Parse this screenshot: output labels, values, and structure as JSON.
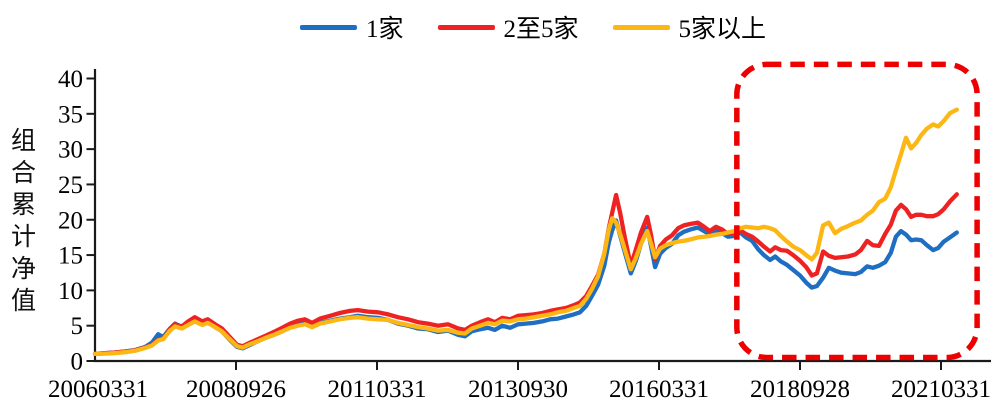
{
  "chart_data": {
    "type": "line",
    "title": "",
    "xlabel": "",
    "ylabel": "组合累计净值",
    "ylim": [
      0,
      40
    ],
    "yticks": [
      0,
      5,
      10,
      15,
      20,
      25,
      30,
      35,
      40
    ],
    "grid": false,
    "legend_position": "top-center",
    "x_unit": "years_since_20060331",
    "xticks": [
      {
        "t": 0.0,
        "label": "20060331"
      },
      {
        "t": 2.5,
        "label": "20080926"
      },
      {
        "t": 5.0,
        "label": "20110331"
      },
      {
        "t": 7.5,
        "label": "20130930"
      },
      {
        "t": 10.0,
        "label": "20160331"
      },
      {
        "t": 12.5,
        "label": "20180928"
      },
      {
        "t": 15.0,
        "label": "20210331"
      }
    ],
    "x": [
      0,
      0.18,
      0.35,
      0.53,
      0.71,
      0.89,
      1.01,
      1.12,
      1.21,
      1.33,
      1.42,
      1.54,
      1.65,
      1.77,
      1.9,
      2,
      2.13,
      2.25,
      2.39,
      2.52,
      2.62,
      2.75,
      2.89,
      3.03,
      3.17,
      3.32,
      3.46,
      3.6,
      3.72,
      3.85,
      3.99,
      4.17,
      4.34,
      4.52,
      4.66,
      4.84,
      5.02,
      5.2,
      5.37,
      5.55,
      5.73,
      5.9,
      6.08,
      6.26,
      6.44,
      6.56,
      6.68,
      6.83,
      6.97,
      7.09,
      7.22,
      7.36,
      7.5,
      7.64,
      7.78,
      7.93,
      8.07,
      8.21,
      8.35,
      8.49,
      8.6,
      8.71,
      8.81,
      8.92,
      9.03,
      9.11,
      9.17,
      9.24,
      9.31,
      9.4,
      9.5,
      9.59,
      9.68,
      9.79,
      9.86,
      9.93,
      10.02,
      10.12,
      10.23,
      10.34,
      10.44,
      10.55,
      10.69,
      10.8,
      10.9,
      11.01,
      11.12,
      11.22,
      11.33,
      11.44,
      11.54,
      11.65,
      11.76,
      11.86,
      11.97,
      12.06,
      12.16,
      12.27,
      12.38,
      12.5,
      12.61,
      12.71,
      12.8,
      12.91,
      13.01,
      13.12,
      13.23,
      13.35,
      13.48,
      13.58,
      13.69,
      13.79,
      13.9,
      14.01,
      14.11,
      14.2,
      14.29,
      14.38,
      14.47,
      14.56,
      14.65,
      14.75,
      14.86,
      14.95,
      15.05,
      15.16,
      15.28
    ],
    "series": [
      {
        "name": "1家",
        "color": "#1e6fc2",
        "values": [
          1,
          1.1,
          1.2,
          1.35,
          1.55,
          2,
          2.6,
          3.8,
          3.4,
          4.6,
          5.3,
          4.8,
          5.4,
          5.8,
          5.2,
          5.6,
          4.8,
          4.2,
          3,
          2,
          1.8,
          2.3,
          2.8,
          3.3,
          3.7,
          4.2,
          4.8,
          5.2,
          5.4,
          5,
          5.4,
          5.7,
          6,
          6.2,
          6.4,
          6.2,
          6.1,
          5.8,
          5.3,
          5,
          4.6,
          4.5,
          4.1,
          4.3,
          3.7,
          3.5,
          4.2,
          4.5,
          4.7,
          4.4,
          5,
          4.7,
          5.2,
          5.3,
          5.4,
          5.6,
          5.9,
          6,
          6.3,
          6.6,
          6.9,
          7.8,
          9.2,
          10.8,
          13.5,
          16.8,
          18.5,
          19.9,
          17.8,
          15.2,
          12.4,
          14.2,
          16.6,
          18.9,
          16.2,
          13.3,
          15.2,
          16,
          16.6,
          17.8,
          18.3,
          18.6,
          18.9,
          18.4,
          17.9,
          18.5,
          18.1,
          17.6,
          17.7,
          18.2,
          17.5,
          17,
          15.8,
          15,
          14.3,
          14.8,
          14.1,
          13.6,
          12.9,
          12.1,
          11.1,
          10.4,
          10.6,
          11.8,
          13.2,
          12.8,
          12.5,
          12.4,
          12.3,
          12.6,
          13.4,
          13.2,
          13.5,
          14,
          15.3,
          17.6,
          18.4,
          17.9,
          17.1,
          17.2,
          17.1,
          16.4,
          15.7,
          16,
          16.9,
          17.5,
          18.2
        ]
      },
      {
        "name": "2至5家",
        "color": "#ee2222",
        "values": [
          1,
          1.1,
          1.2,
          1.35,
          1.5,
          1.9,
          2.3,
          3,
          3.2,
          4.5,
          5.2,
          4.9,
          5.6,
          6.2,
          5.6,
          5.9,
          5.2,
          4.6,
          3.4,
          2.3,
          2.1,
          2.6,
          3.1,
          3.6,
          4.1,
          4.7,
          5.3,
          5.7,
          5.9,
          5.4,
          6,
          6.4,
          6.8,
          7.1,
          7.2,
          7,
          6.9,
          6.6,
          6.2,
          5.9,
          5.5,
          5.3,
          5,
          5.2,
          4.6,
          4.4,
          5,
          5.5,
          5.9,
          5.5,
          6.1,
          5.9,
          6.4,
          6.5,
          6.6,
          6.8,
          7.1,
          7.3,
          7.5,
          7.9,
          8.3,
          9.2,
          10.6,
          12.2,
          15.2,
          18.8,
          21,
          23.5,
          21,
          17.2,
          13.5,
          15.8,
          18.2,
          20.4,
          17.8,
          14.4,
          16.3,
          17.2,
          17.8,
          18.8,
          19.2,
          19.4,
          19.6,
          19,
          18.4,
          19,
          18.6,
          18,
          18.1,
          18.5,
          18,
          17.6,
          16.9,
          16.2,
          15.5,
          16.1,
          15.7,
          15.6,
          15,
          14.2,
          13.3,
          12.1,
          12.4,
          15.5,
          14.9,
          14.6,
          14.7,
          14.8,
          15.1,
          15.7,
          17,
          16.4,
          16.3,
          18,
          19.3,
          21.3,
          22.1,
          21.5,
          20.4,
          20.7,
          20.7,
          20.5,
          20.5,
          20.8,
          21.5,
          22.6,
          23.6
        ]
      },
      {
        "name": "5家以上",
        "color": "#fdb714",
        "values": [
          1,
          1.05,
          1.1,
          1.25,
          1.45,
          1.85,
          2.2,
          2.9,
          3.1,
          4.3,
          4.9,
          4.6,
          5.1,
          5.6,
          5.1,
          5.4,
          4.8,
          4.2,
          3.1,
          2.1,
          1.9,
          2.4,
          2.8,
          3.3,
          3.7,
          4.2,
          4.7,
          5,
          5.2,
          4.8,
          5.3,
          5.6,
          5.9,
          6.1,
          6.2,
          6,
          5.9,
          5.8,
          5.4,
          5.1,
          4.8,
          4.6,
          4.3,
          4.4,
          4,
          3.9,
          4.6,
          5,
          5.4,
          5.2,
          5.7,
          5.6,
          5.9,
          6,
          6.2,
          6.4,
          6.6,
          6.9,
          7.1,
          7.5,
          7.8,
          8.8,
          10.2,
          12,
          15.2,
          18.6,
          20.2,
          19.6,
          18,
          15.6,
          13,
          14.6,
          16.6,
          18.4,
          16.6,
          14.7,
          15.9,
          16.4,
          16.7,
          16.9,
          17,
          17.2,
          17.5,
          17.6,
          17.7,
          17.9,
          18,
          18.2,
          18.4,
          18.8,
          19,
          18.9,
          18.8,
          19,
          18.8,
          18.5,
          17.7,
          16.9,
          16.2,
          15.7,
          15,
          14.4,
          15.3,
          19.2,
          19.6,
          18.1,
          18.7,
          19.1,
          19.6,
          19.9,
          20.7,
          21.3,
          22.5,
          23,
          24.6,
          27,
          29.3,
          31.6,
          30.1,
          30.9,
          32,
          32.9,
          33.5,
          33.2,
          34,
          35.1,
          35.6
        ]
      }
    ],
    "annotations": [
      {
        "type": "dashed-box",
        "color": "#ee0000",
        "t_start": 11.38,
        "t_end": 15.64,
        "v_start": 0.5,
        "v_end": 42
      }
    ]
  }
}
